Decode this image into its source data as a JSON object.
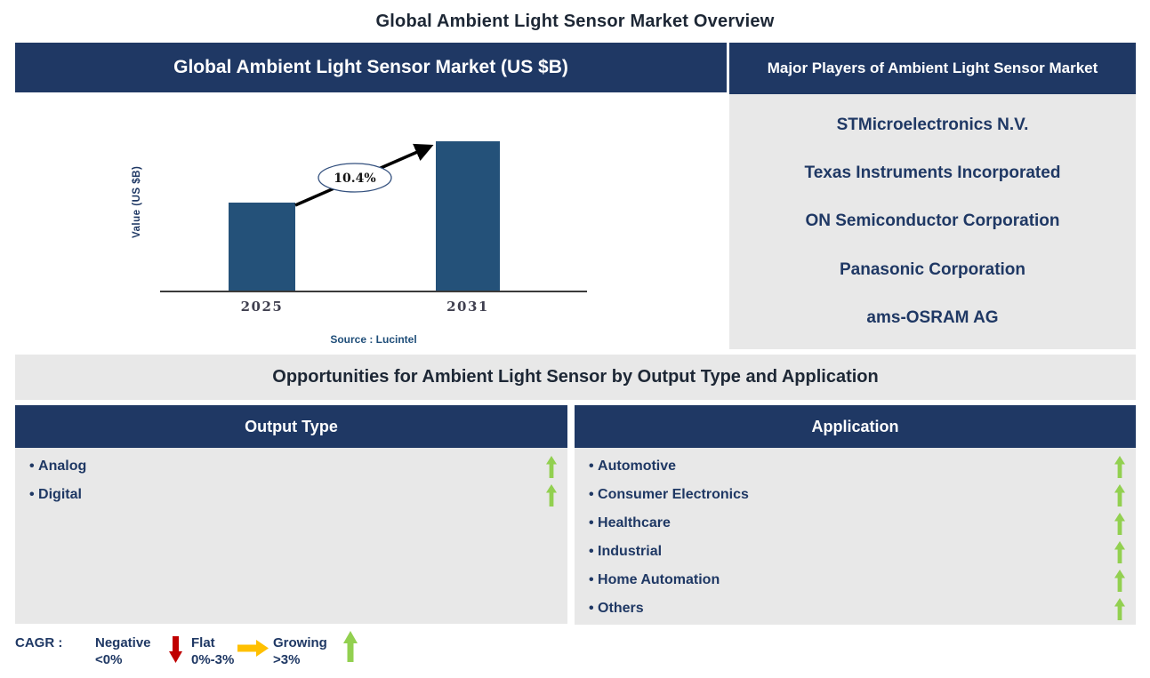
{
  "page_title": "Global Ambient Light Sensor Market Overview",
  "colors": {
    "navy": "#1F3864",
    "panel_gray": "#E8E8E8",
    "bar_blue": "#245179",
    "source_blue": "#1F4E79",
    "growing_green": "#92D050",
    "negative_red": "#C00000",
    "flat_yellow": "#FFC000"
  },
  "market_chart": {
    "header": "Global Ambient Light Sensor Market (US $B)",
    "y_axis_label": "Value (US $B)",
    "growth_label": "10.4%",
    "source": "Source : Lucintel"
  },
  "chart_data": {
    "type": "bar",
    "title": "Global Ambient Light Sensor Market (US $B)",
    "categories": [
      "2025",
      "2031"
    ],
    "values": [
      1.0,
      1.69
    ],
    "values_note": "relative bar heights; y-axis has no numeric ticks",
    "xlabel": "",
    "ylabel": "Value (US $B)",
    "grid": false,
    "legend": false,
    "annotations": [
      {
        "text": "10.4%",
        "meaning": "CAGR growth arrow from 2025 bar to 2031 bar"
      }
    ],
    "source": "Source : Lucintel"
  },
  "major_players": {
    "header": "Major Players of Ambient Light Sensor Market",
    "players": [
      "STMicroelectronics N.V.",
      "Texas Instruments Incorporated",
      "ON Semiconductor Corporation",
      "Panasonic Corporation",
      "ams-OSRAM AG"
    ]
  },
  "opportunities": {
    "title": "Opportunities for Ambient Light Sensor by Output Type and Application",
    "output_type": {
      "header": "Output Type",
      "items": [
        {
          "label": "Analog",
          "trend": "growing"
        },
        {
          "label": "Digital",
          "trend": "growing"
        }
      ]
    },
    "application": {
      "header": "Application",
      "items": [
        {
          "label": "Automotive",
          "trend": "growing"
        },
        {
          "label": "Consumer Electronics",
          "trend": "growing"
        },
        {
          "label": "Healthcare",
          "trend": "growing"
        },
        {
          "label": "Industrial",
          "trend": "growing"
        },
        {
          "label": "Home Automation",
          "trend": "growing"
        },
        {
          "label": "Others",
          "trend": "growing"
        }
      ]
    }
  },
  "cagr_legend": {
    "label": "CAGR :",
    "items": [
      {
        "name": "Negative",
        "range": "<0%",
        "arrow": "down-arrow",
        "color": "#C00000"
      },
      {
        "name": "Flat",
        "range": "0%-3%",
        "arrow": "right-arrow",
        "color": "#FFC000"
      },
      {
        "name": "Growing",
        "range": ">3%",
        "arrow": "up-arrow",
        "color": "#92D050"
      }
    ]
  }
}
